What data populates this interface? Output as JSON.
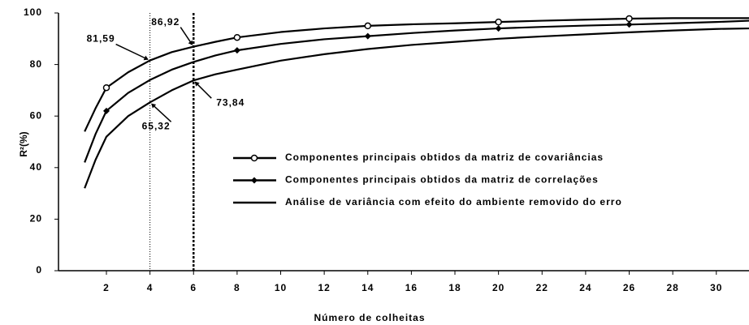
{
  "chart_data": {
    "type": "line",
    "x_label": "Número de colheitas",
    "y_label": "R²(%)",
    "xlim": [
      -0.2,
      31.5
    ],
    "ylim": [
      0,
      100
    ],
    "xticks": [
      2,
      4,
      6,
      8,
      10,
      12,
      14,
      16,
      18,
      20,
      22,
      24,
      26,
      28,
      30
    ],
    "yticks": [
      0,
      20,
      40,
      60,
      80,
      100
    ],
    "series": [
      {
        "name": "Componentes principais obtidos da matriz de covariâncias",
        "color": "#000000",
        "marker": "open-circle",
        "markers_at": [
          2,
          8,
          14,
          20,
          26
        ],
        "x": [
          1,
          1.5,
          2,
          3,
          4,
          5,
          6,
          7,
          8,
          10,
          12,
          14,
          16,
          18,
          20,
          22,
          24,
          26,
          28,
          30,
          31.5
        ],
        "values": [
          54,
          63,
          71,
          77,
          81.59,
          84.8,
          86.92,
          88.8,
          90.5,
          92.6,
          94,
          95,
          95.6,
          96,
          96.5,
          97,
          97.4,
          97.8,
          98,
          98,
          98
        ]
      },
      {
        "name": "Componentes principais obtidos da matriz de correlações",
        "color": "#000000",
        "marker": "filled-diamond",
        "markers_at": [
          2,
          8,
          14,
          20,
          26
        ],
        "x": [
          1,
          1.5,
          2,
          3,
          4,
          5,
          6,
          7,
          8,
          10,
          12,
          14,
          16,
          18,
          20,
          22,
          24,
          26,
          28,
          30,
          31.5
        ],
        "values": [
          42,
          53,
          62,
          69,
          74,
          78,
          81,
          83.5,
          85.5,
          88,
          89.8,
          91,
          92.2,
          93.2,
          94,
          94.6,
          95.1,
          95.5,
          96,
          96.5,
          97
        ]
      },
      {
        "name": "Análise de variância com efeito do ambiente removido do erro",
        "color": "#000000",
        "marker": "none",
        "markers_at": [],
        "x": [
          1,
          1.5,
          2,
          3,
          4,
          5,
          6,
          7,
          8,
          10,
          12,
          14,
          16,
          18,
          20,
          22,
          24,
          26,
          28,
          30,
          31.5
        ],
        "values": [
          32,
          43,
          52,
          60,
          65.32,
          70,
          73.84,
          76.2,
          78,
          81.5,
          84,
          86,
          87.6,
          88.8,
          90,
          90.9,
          91.7,
          92.5,
          93.2,
          93.8,
          94
        ]
      }
    ],
    "vlines": [
      {
        "x": 4,
        "style": "dotted"
      },
      {
        "x": 6,
        "style": "dashed"
      }
    ],
    "annotations": [
      {
        "text": "81,59",
        "x": 4,
        "y": 81.59
      },
      {
        "text": "86,92",
        "x": 6,
        "y": 86.92
      },
      {
        "text": "73,84",
        "x": 6,
        "y": 73.84
      },
      {
        "text": "65,32",
        "x": 4,
        "y": 65.32
      }
    ]
  }
}
